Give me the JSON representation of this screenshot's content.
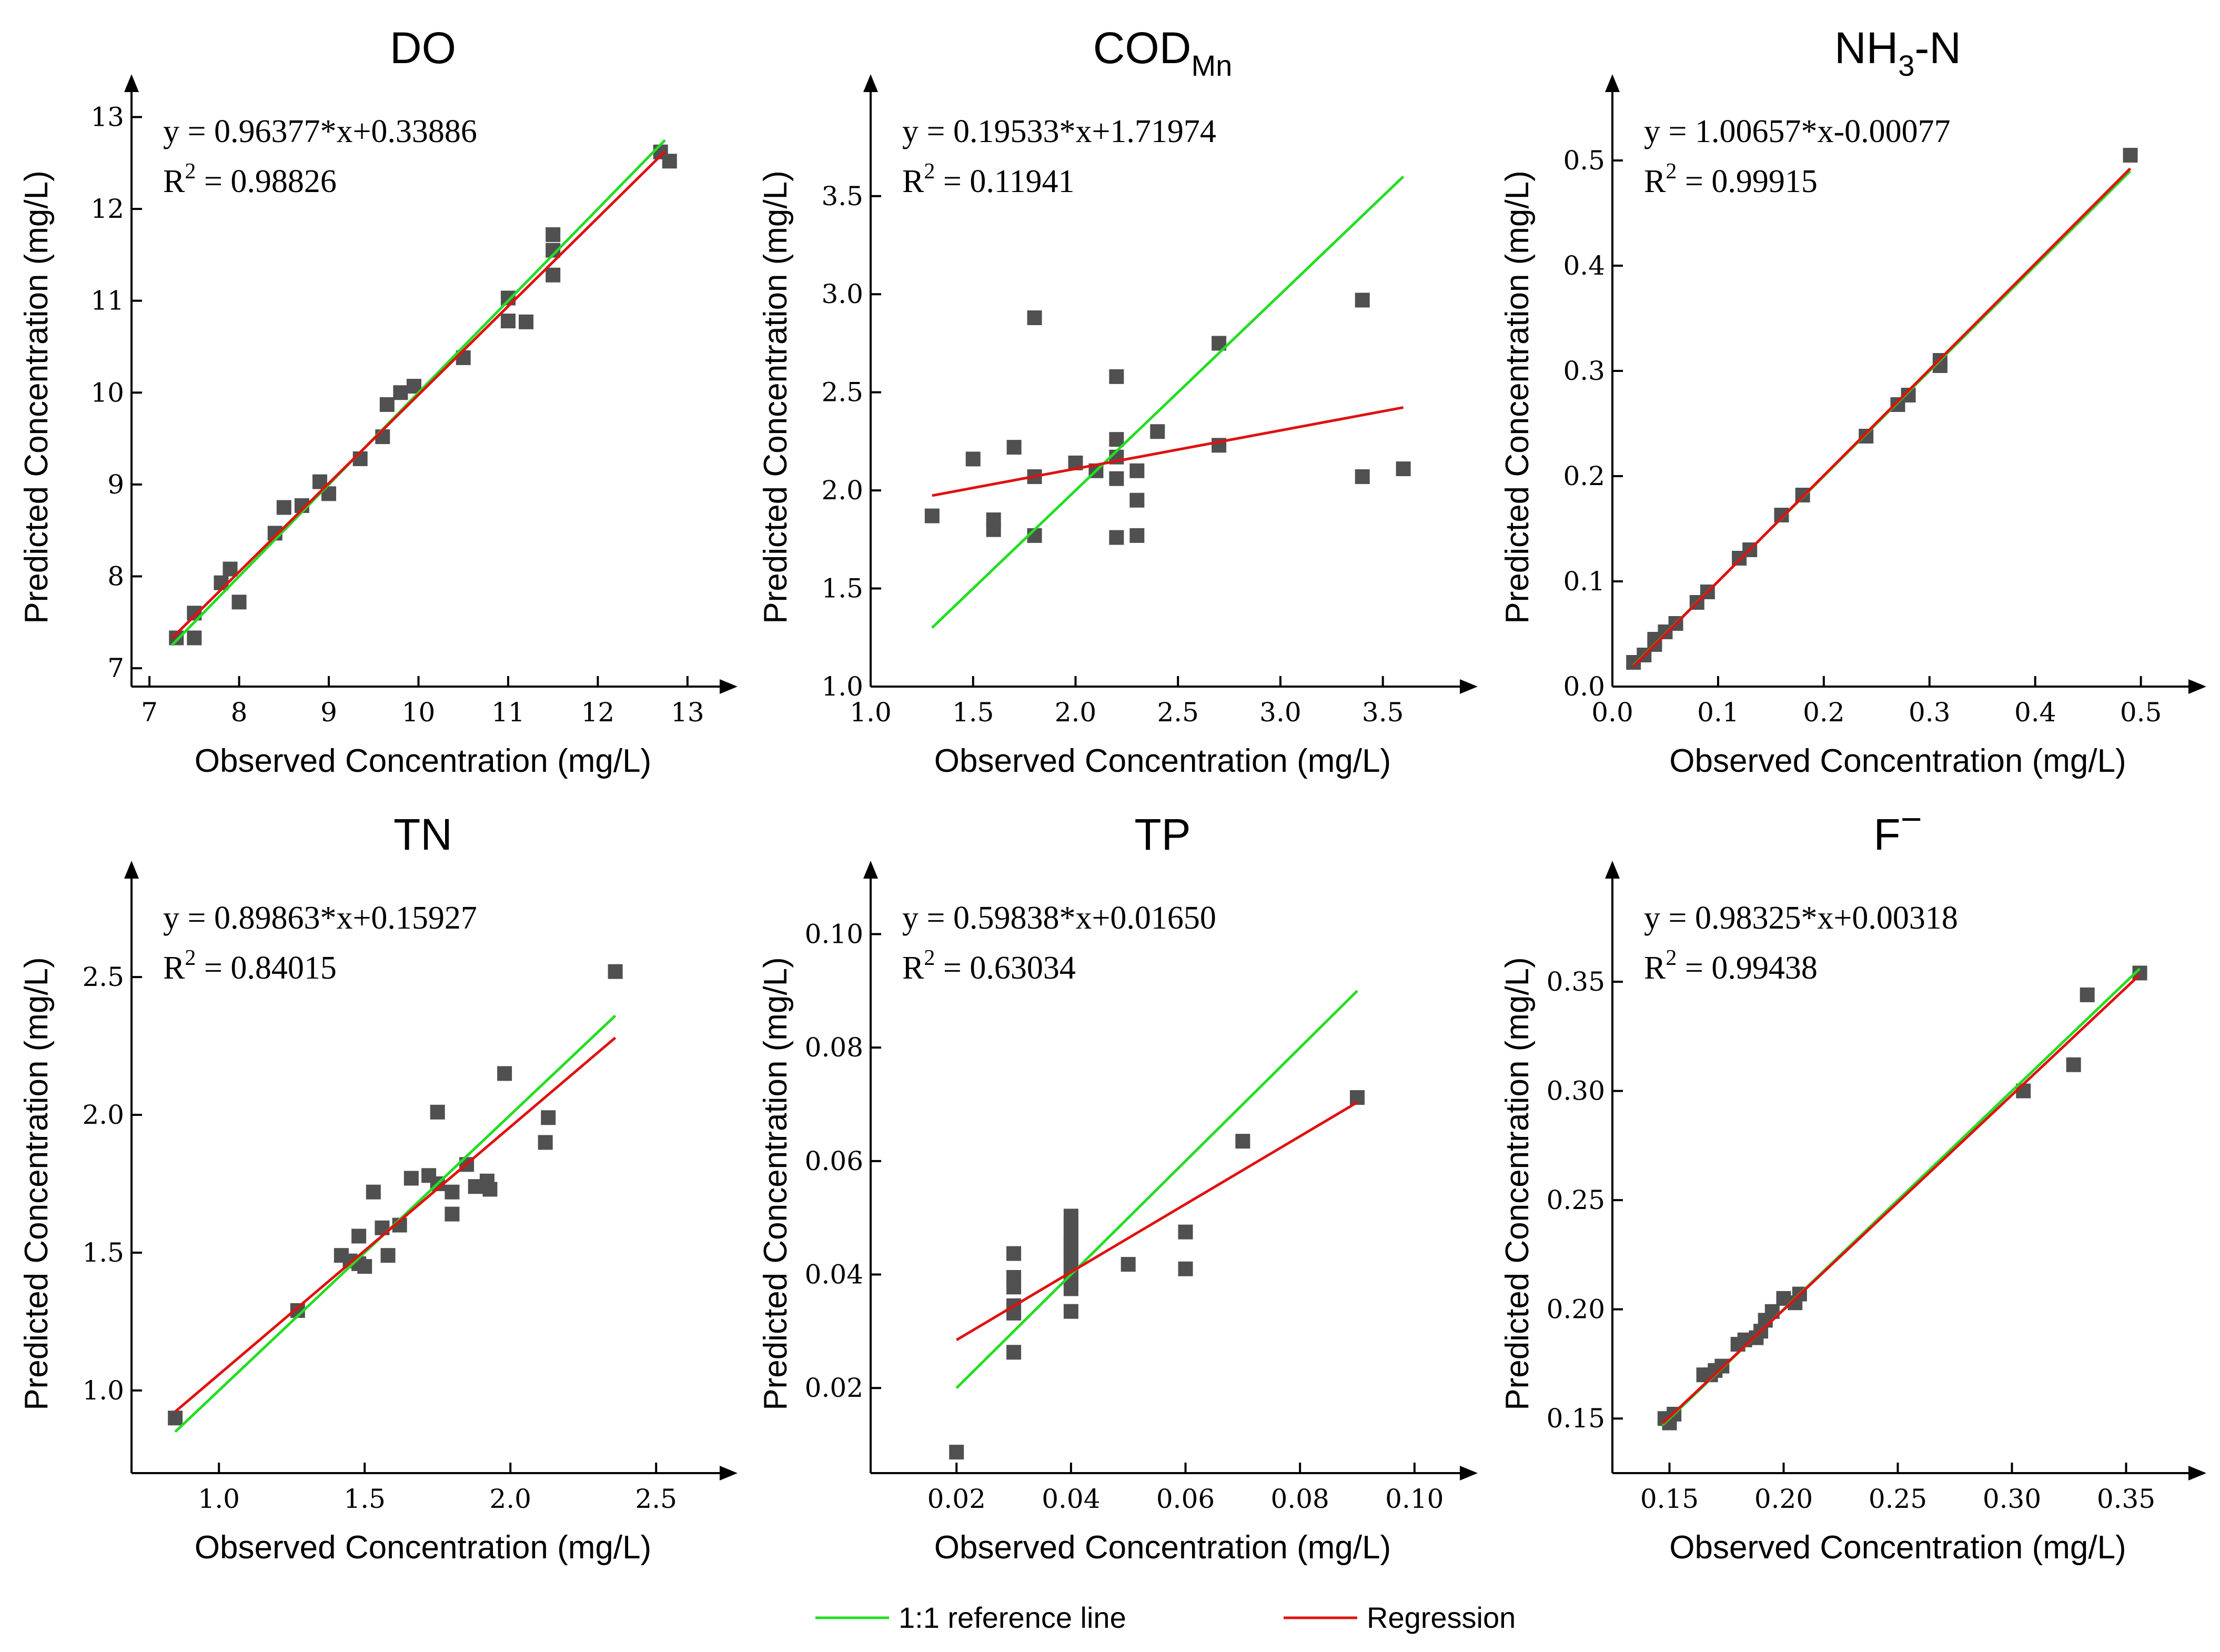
{
  "colors": {
    "reference": "#22dd22",
    "regression": "#e01010",
    "point": "#505050",
    "axis": "#000000"
  },
  "legend": [
    {
      "label": "1:1 reference line",
      "color": "#22dd22"
    },
    {
      "label": "Regression",
      "color": "#e01010"
    }
  ],
  "chart_data": [
    {
      "type": "scatter",
      "title": "DO",
      "title_sub": "",
      "title_sup": "",
      "xlabel": "Observed Concentration (mg/L)",
      "ylabel": "Predicted Concentration (mg/L)",
      "xlim": [
        6.8,
        13.3
      ],
      "ylim": [
        6.8,
        13.1
      ],
      "xticks": [
        7,
        8,
        9,
        10,
        11,
        12,
        13
      ],
      "xticklabels": [
        "7",
        "8",
        "9",
        "10",
        "11",
        "12",
        "13"
      ],
      "yticks": [
        7,
        8,
        9,
        10,
        11,
        12,
        13
      ],
      "yticklabels": [
        "7",
        "8",
        "9",
        "10",
        "11",
        "12",
        "13"
      ],
      "equation": "y = 0.96377*x+0.33886",
      "r2_label": "R",
      "r2_sup": "2",
      "r2_value": " = 0.98826",
      "slope": 0.96377,
      "intercept": 0.33886,
      "line_range": [
        7.25,
        12.75
      ],
      "points": [
        [
          7.3,
          7.33
        ],
        [
          7.5,
          7.6
        ],
        [
          7.5,
          7.33
        ],
        [
          7.8,
          7.93
        ],
        [
          7.9,
          8.08
        ],
        [
          8.0,
          7.72
        ],
        [
          8.4,
          8.47
        ],
        [
          8.5,
          8.75
        ],
        [
          8.7,
          8.77
        ],
        [
          8.9,
          9.03
        ],
        [
          9.0,
          8.9
        ],
        [
          9.35,
          9.28
        ],
        [
          9.6,
          9.52
        ],
        [
          9.65,
          9.87
        ],
        [
          9.8,
          10.0
        ],
        [
          9.95,
          10.07
        ],
        [
          10.5,
          10.38
        ],
        [
          11.0,
          11.03
        ],
        [
          11.0,
          10.78
        ],
        [
          11.2,
          10.77
        ],
        [
          11.5,
          11.72
        ],
        [
          11.5,
          11.55
        ],
        [
          11.5,
          11.28
        ],
        [
          12.7,
          12.62
        ],
        [
          12.8,
          12.52
        ]
      ]
    },
    {
      "type": "scatter",
      "title": "COD",
      "title_sub": "Mn",
      "title_sup": "",
      "xlabel": "Observed Concentration (mg/L)",
      "ylabel": "Predicted Concentration (mg/L)",
      "xlim": [
        1.0,
        3.85
      ],
      "ylim": [
        1.0,
        3.95
      ],
      "xticks": [
        1.0,
        1.5,
        2.0,
        2.5,
        3.0,
        3.5
      ],
      "xticklabels": [
        "1.0",
        "1.5",
        "2.0",
        "2.5",
        "3.0",
        "3.5"
      ],
      "yticks": [
        1.0,
        1.5,
        2.0,
        2.5,
        3.0,
        3.5
      ],
      "yticklabels": [
        "1.0",
        "1.5",
        "2.0",
        "2.5",
        "3.0",
        "3.5"
      ],
      "equation": "y = 0.19533*x+1.71974",
      "r2_label": "R",
      "r2_sup": "2",
      "r2_value": " = 0.11941",
      "slope": 0.19533,
      "intercept": 1.71974,
      "line_range": [
        1.3,
        3.6
      ],
      "points": [
        [
          1.3,
          1.87
        ],
        [
          1.5,
          2.16
        ],
        [
          1.6,
          1.85
        ],
        [
          1.6,
          1.8
        ],
        [
          1.7,
          2.22
        ],
        [
          1.8,
          2.88
        ],
        [
          1.8,
          2.07
        ],
        [
          1.8,
          1.77
        ],
        [
          2.0,
          2.14
        ],
        [
          2.1,
          2.1
        ],
        [
          2.2,
          2.58
        ],
        [
          2.2,
          2.26
        ],
        [
          2.2,
          2.17
        ],
        [
          2.2,
          2.06
        ],
        [
          2.2,
          1.76
        ],
        [
          2.3,
          2.1
        ],
        [
          2.3,
          1.95
        ],
        [
          2.3,
          1.77
        ],
        [
          2.4,
          2.3
        ],
        [
          2.7,
          2.75
        ],
        [
          2.7,
          2.23
        ],
        [
          3.4,
          2.97
        ],
        [
          3.4,
          2.07
        ],
        [
          3.6,
          2.11
        ]
      ]
    },
    {
      "type": "scatter",
      "title": "NH",
      "title_sub": "3",
      "title_sup": "",
      "title_tail": "-N",
      "xlabel": "Observed Concentration (mg/L)",
      "ylabel": "Predicted Concentration (mg/L)",
      "xlim": [
        0.0,
        0.54
      ],
      "ylim": [
        0.0,
        0.55
      ],
      "xticks": [
        0.0,
        0.1,
        0.2,
        0.3,
        0.4,
        0.5
      ],
      "xticklabels": [
        "0.0",
        "0.1",
        "0.2",
        "0.3",
        "0.4",
        "0.5"
      ],
      "yticks": [
        0.0,
        0.1,
        0.2,
        0.3,
        0.4,
        0.5
      ],
      "yticklabels": [
        "0.0",
        "0.1",
        "0.2",
        "0.3",
        "0.4",
        "0.5"
      ],
      "equation": "y = 1.00657*x-0.00077",
      "r2_label": "R",
      "r2_sup": "2",
      "r2_value": " = 0.99915",
      "slope": 1.00657,
      "intercept": -0.00077,
      "line_range": [
        0.02,
        0.49
      ],
      "points": [
        [
          0.02,
          0.023
        ],
        [
          0.03,
          0.03
        ],
        [
          0.04,
          0.04
        ],
        [
          0.04,
          0.045
        ],
        [
          0.05,
          0.052
        ],
        [
          0.06,
          0.06
        ],
        [
          0.08,
          0.08
        ],
        [
          0.09,
          0.09
        ],
        [
          0.12,
          0.122
        ],
        [
          0.13,
          0.13
        ],
        [
          0.16,
          0.163
        ],
        [
          0.18,
          0.182
        ],
        [
          0.24,
          0.238
        ],
        [
          0.27,
          0.268
        ],
        [
          0.28,
          0.277
        ],
        [
          0.31,
          0.305
        ],
        [
          0.31,
          0.31
        ],
        [
          0.49,
          0.505
        ]
      ]
    },
    {
      "type": "scatter",
      "title": "TN",
      "title_sub": "",
      "title_sup": "",
      "xlabel": "Observed Concentration (mg/L)",
      "ylabel": "Predicted Concentration (mg/L)",
      "xlim": [
        0.7,
        2.7
      ],
      "ylim": [
        0.7,
        2.8
      ],
      "xticks": [
        1.0,
        1.5,
        2.0,
        2.5
      ],
      "xticklabels": [
        "1.0",
        "1.5",
        "2.0",
        "2.5"
      ],
      "yticks": [
        1.0,
        1.5,
        2.0,
        2.5
      ],
      "yticklabels": [
        "1.0",
        "1.5",
        "2.0",
        "2.5"
      ],
      "equation": "y = 0.89863*x+0.15927",
      "r2_label": "R",
      "r2_sup": "2",
      "r2_value": " = 0.84015",
      "slope": 0.89863,
      "intercept": 0.15927,
      "line_range": [
        0.85,
        2.36
      ],
      "points": [
        [
          0.85,
          0.9
        ],
        [
          1.27,
          1.29
        ],
        [
          1.42,
          1.49
        ],
        [
          1.45,
          1.47
        ],
        [
          1.48,
          1.46
        ],
        [
          1.48,
          1.56
        ],
        [
          1.5,
          1.45
        ],
        [
          1.53,
          1.72
        ],
        [
          1.56,
          1.59
        ],
        [
          1.58,
          1.49
        ],
        [
          1.62,
          1.6
        ],
        [
          1.66,
          1.77
        ],
        [
          1.72,
          1.78
        ],
        [
          1.75,
          1.75
        ],
        [
          1.75,
          2.01
        ],
        [
          1.8,
          1.64
        ],
        [
          1.8,
          1.72
        ],
        [
          1.85,
          1.82
        ],
        [
          1.88,
          1.74
        ],
        [
          1.92,
          1.76
        ],
        [
          1.93,
          1.73
        ],
        [
          1.98,
          2.15
        ],
        [
          2.12,
          1.9
        ],
        [
          2.13,
          1.99
        ],
        [
          2.36,
          2.52
        ]
      ]
    },
    {
      "type": "scatter",
      "title": "TP",
      "title_sub": "",
      "title_sup": "",
      "xlabel": "Observed Concentration (mg/L)",
      "ylabel": "Predicted Concentration (mg/L)",
      "xlim": [
        0.005,
        0.107
      ],
      "ylim": [
        0.005,
        0.107
      ],
      "xticks": [
        0.02,
        0.04,
        0.06,
        0.08,
        0.1
      ],
      "xticklabels": [
        "0.02",
        "0.04",
        "0.06",
        "0.08",
        "0.10"
      ],
      "yticks": [
        0.02,
        0.04,
        0.06,
        0.08,
        0.1
      ],
      "yticklabels": [
        "0.02",
        "0.04",
        "0.06",
        "0.08",
        "0.10"
      ],
      "equation": "y = 0.59838*x+0.01650",
      "r2_label": "R",
      "r2_sup": "2",
      "r2_value": " = 0.63034",
      "slope": 0.59838,
      "intercept": 0.0165,
      "line_range": [
        0.02,
        0.09
      ],
      "points": [
        [
          0.02,
          0.0087
        ],
        [
          0.03,
          0.0263
        ],
        [
          0.03,
          0.0332
        ],
        [
          0.03,
          0.0345
        ],
        [
          0.03,
          0.0378
        ],
        [
          0.03,
          0.0395
        ],
        [
          0.03,
          0.0437
        ],
        [
          0.04,
          0.0335
        ],
        [
          0.04,
          0.0375
        ],
        [
          0.04,
          0.0385
        ],
        [
          0.04,
          0.0395
        ],
        [
          0.04,
          0.0405
        ],
        [
          0.04,
          0.0415
        ],
        [
          0.04,
          0.0425
        ],
        [
          0.04,
          0.0435
        ],
        [
          0.04,
          0.0445
        ],
        [
          0.04,
          0.0455
        ],
        [
          0.04,
          0.0465
        ],
        [
          0.04,
          0.0475
        ],
        [
          0.04,
          0.049
        ],
        [
          0.04,
          0.0503
        ],
        [
          0.05,
          0.0418
        ],
        [
          0.06,
          0.0475
        ],
        [
          0.06,
          0.041
        ],
        [
          0.07,
          0.0635
        ],
        [
          0.09,
          0.0712
        ]
      ]
    },
    {
      "type": "scatter",
      "title": "F",
      "title_sub": "",
      "title_sup": "−",
      "xlabel": "Observed Concentration (mg/L)",
      "ylabel": "Predicted Concentration (mg/L)",
      "xlim": [
        0.125,
        0.375
      ],
      "ylim": [
        0.125,
        0.39
      ],
      "xticks": [
        0.15,
        0.2,
        0.25,
        0.3,
        0.35
      ],
      "xticklabels": [
        "0.15",
        "0.20",
        "0.25",
        "0.30",
        "0.35"
      ],
      "yticks": [
        0.15,
        0.2,
        0.25,
        0.3,
        0.35
      ],
      "yticklabels": [
        "0.15",
        "0.20",
        "0.25",
        "0.30",
        "0.35"
      ],
      "equation": "y = 0.98325*x+0.00318",
      "r2_label": "R",
      "r2_sup": "2",
      "r2_value": " = 0.99438",
      "slope": 0.98325,
      "intercept": 0.00318,
      "line_range": [
        0.147,
        0.356
      ],
      "points": [
        [
          0.148,
          0.15
        ],
        [
          0.15,
          0.148
        ],
        [
          0.152,
          0.152
        ],
        [
          0.165,
          0.17
        ],
        [
          0.168,
          0.17
        ],
        [
          0.17,
          0.172
        ],
        [
          0.173,
          0.174
        ],
        [
          0.18,
          0.184
        ],
        [
          0.183,
          0.186
        ],
        [
          0.188,
          0.187
        ],
        [
          0.19,
          0.19
        ],
        [
          0.192,
          0.195
        ],
        [
          0.195,
          0.199
        ],
        [
          0.2,
          0.205
        ],
        [
          0.205,
          0.203
        ],
        [
          0.207,
          0.207
        ],
        [
          0.305,
          0.3
        ],
        [
          0.327,
          0.312
        ],
        [
          0.333,
          0.344
        ],
        [
          0.356,
          0.354
        ]
      ]
    }
  ]
}
